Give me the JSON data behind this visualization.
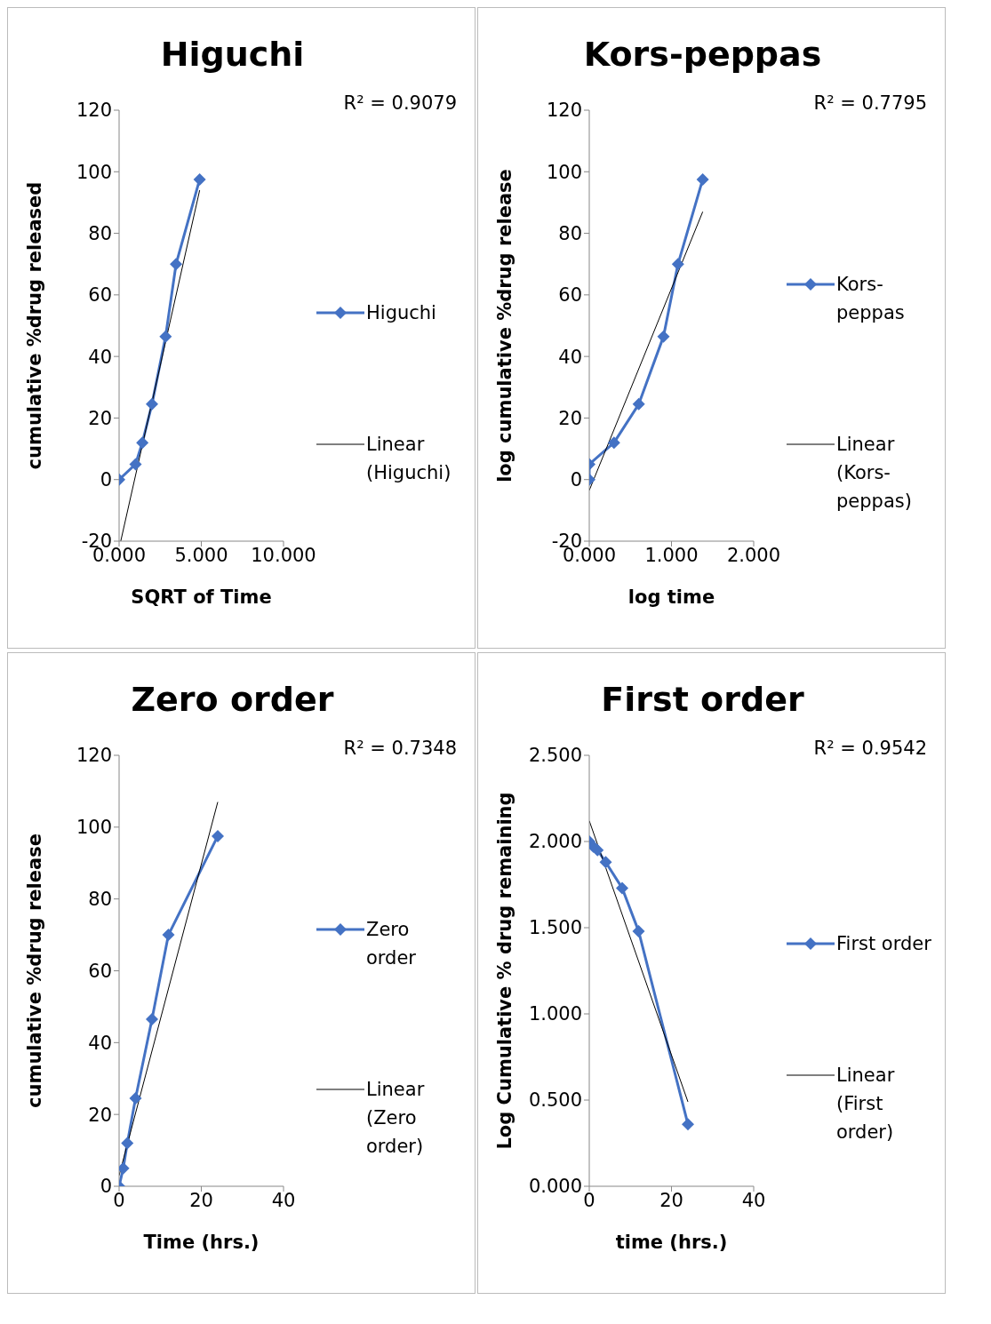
{
  "chart_data": [
    {
      "type": "line",
      "title": "Higuchi",
      "xlabel": "SQRT of Time",
      "ylabel": "cumulative %drug released",
      "xlim": [
        0,
        10
      ],
      "xticks": [
        {
          "value": 0,
          "label": "0.000"
        },
        {
          "value": 5,
          "label": "5.000"
        },
        {
          "value": 10,
          "label": "10.000"
        }
      ],
      "ylim": [
        -20,
        120
      ],
      "yticks": [
        -20,
        0,
        20,
        40,
        60,
        80,
        100,
        120
      ],
      "grid": false,
      "legend": "right",
      "marker": "diamond",
      "annotations": [
        "R² = 0.9079"
      ],
      "series": [
        {
          "name": "Higuchi",
          "color": "#4472c4",
          "x": [
            0,
            1,
            1.414,
            2,
            2.828,
            3.464,
            4.899
          ],
          "values": [
            0,
            5,
            12,
            24.5,
            46.5,
            70,
            97.5
          ]
        },
        {
          "name": "Linear (Higuchi)",
          "type": "line",
          "marker": "none",
          "color": "#000000",
          "x": [
            0.1,
            4.9
          ],
          "values": [
            -20,
            94
          ]
        }
      ]
    },
    {
      "type": "line",
      "title": "Kors-peppas",
      "xlabel": "log time",
      "ylabel": "log cumulative %drug release",
      "xlim": [
        0,
        2
      ],
      "xticks": [
        {
          "value": 0,
          "label": "0.000"
        },
        {
          "value": 1,
          "label": "1.000"
        },
        {
          "value": 2,
          "label": "2.000"
        }
      ],
      "ylim": [
        -20,
        120
      ],
      "yticks": [
        -20,
        0,
        20,
        40,
        60,
        80,
        100,
        120
      ],
      "grid": false,
      "legend": "right",
      "marker": "diamond",
      "annotations": [
        "R² = 0.7795"
      ],
      "series": [
        {
          "name": "Kors-peppas",
          "color": "#4472c4",
          "x": [
            0,
            0,
            0.301,
            0.602,
            0.903,
            1.079,
            1.38
          ],
          "values": [
            0,
            5,
            12,
            24.5,
            46.5,
            70,
            97.5
          ]
        },
        {
          "name": "Linear (Kors-peppas)",
          "type": "line",
          "marker": "none",
          "color": "#000000",
          "x": [
            0,
            1.38
          ],
          "values": [
            -3.5,
            87
          ]
        }
      ]
    },
    {
      "type": "line",
      "title": "Zero order",
      "xlabel": "Time (hrs.)",
      "ylabel": "cumulative %drug release",
      "xlim": [
        0,
        40
      ],
      "xticks": [
        0,
        20,
        40
      ],
      "ylim": [
        0,
        120
      ],
      "yticks": [
        0,
        20,
        40,
        60,
        80,
        100,
        120
      ],
      "grid": false,
      "legend": "right",
      "marker": "diamond",
      "annotations": [
        "R² = 0.7348"
      ],
      "series": [
        {
          "name": "Zero order",
          "color": "#4472c4",
          "x": [
            0,
            1,
            2,
            4,
            8,
            12,
            24
          ],
          "values": [
            0,
            5,
            12,
            24.5,
            46.5,
            70,
            97.5
          ]
        },
        {
          "name": "Linear (Zero order)",
          "type": "line",
          "marker": "none",
          "color": "#000000",
          "x": [
            0,
            24
          ],
          "values": [
            3,
            107
          ]
        }
      ]
    },
    {
      "type": "line",
      "title": "First order",
      "xlabel": "time (hrs.)",
      "ylabel": "Log Cumulative % drug remaining",
      "xlim": [
        0,
        40
      ],
      "xticks": [
        0,
        20,
        40
      ],
      "ylim": [
        0,
        2.5
      ],
      "yticks": [
        {
          "value": 0,
          "label": "0.000"
        },
        {
          "value": 0.5,
          "label": "0.500"
        },
        {
          "value": 1,
          "label": "1.000"
        },
        {
          "value": 1.5,
          "label": "1.500"
        },
        {
          "value": 2,
          "label": "2.000"
        },
        {
          "value": 2.5,
          "label": "2.500"
        }
      ],
      "grid": false,
      "legend": "right",
      "marker": "diamond",
      "annotations": [
        "R² = 0.9542"
      ],
      "series": [
        {
          "name": "First order",
          "color": "#4472c4",
          "x": [
            0,
            1,
            2,
            4,
            8,
            12,
            24
          ],
          "values": [
            2,
            1.97,
            1.95,
            1.88,
            1.73,
            1.48,
            0.36
          ]
        },
        {
          "name": "Linear (First order)",
          "type": "line",
          "marker": "none",
          "color": "#000000",
          "x": [
            0,
            24
          ],
          "values": [
            2.12,
            0.49
          ]
        }
      ]
    }
  ]
}
